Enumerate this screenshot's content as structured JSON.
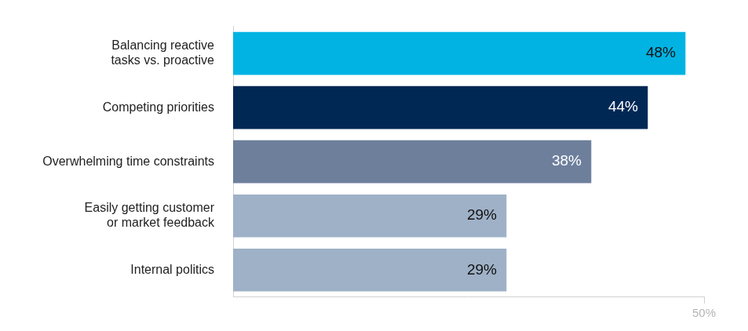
{
  "chart_data": {
    "type": "bar",
    "orientation": "horizontal",
    "categories": [
      [
        "Balancing reactive",
        "tasks vs. proactive"
      ],
      "Competing priorities",
      "Overwhelming time constraints",
      [
        "Easily getting customer",
        "or market feedback"
      ],
      "Internal politics"
    ],
    "values": [
      48,
      44,
      38,
      29,
      29
    ],
    "value_labels": [
      "48%",
      "44%",
      "38%",
      "29%",
      "29%"
    ],
    "colors": [
      "#00b3e3",
      "#002855",
      "#6e7f9c",
      "#9fb1c7",
      "#9fb1c7"
    ],
    "xlim": [
      0,
      50
    ],
    "xticks": [
      {
        "value": 50,
        "label": "50%"
      }
    ],
    "grid": false,
    "data_labels": true
  }
}
